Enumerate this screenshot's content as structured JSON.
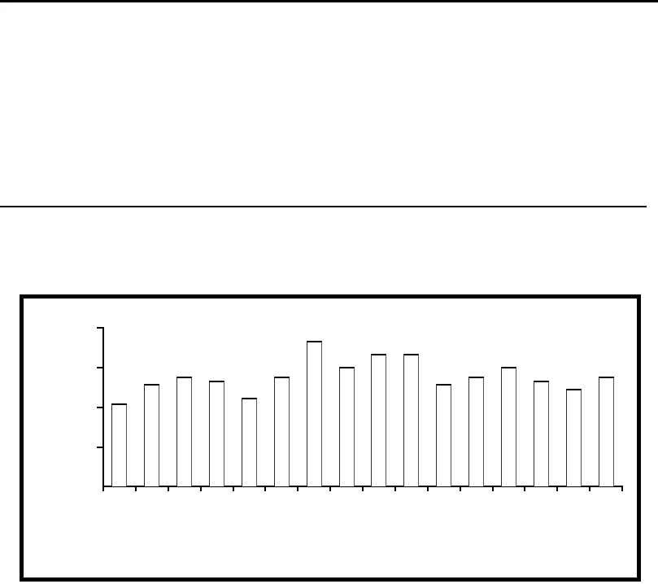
{
  "page": {
    "background": "#ffffff",
    "top_rule_color": "#000000",
    "divider_color": "#0a0a0a",
    "frame_border_color": "#000000",
    "corner_artifact_glyph": "⋰"
  },
  "chart_data": {
    "type": "bar",
    "title": "",
    "xlabel": "",
    "ylabel": "",
    "categories": [
      "",
      "",
      "",
      "",
      "",
      "",
      "",
      "",
      "",
      "",
      "",
      "",
      "",
      "",
      "",
      ""
    ],
    "values": [
      2.09,
      2.57,
      2.76,
      2.66,
      2.23,
      2.76,
      3.65,
      3.0,
      3.33,
      3.33,
      2.58,
      2.76,
      2.99,
      2.66,
      2.44,
      2.76
    ],
    "ylim": [
      0,
      4
    ],
    "y_ticks": [
      1,
      2,
      3,
      4
    ],
    "x_tick_count": 17,
    "tick_labels_visible": false,
    "legend": null,
    "grid": false,
    "bar_fill": "#ffffff",
    "bar_border": "#000000",
    "axis_color": "#000000"
  }
}
